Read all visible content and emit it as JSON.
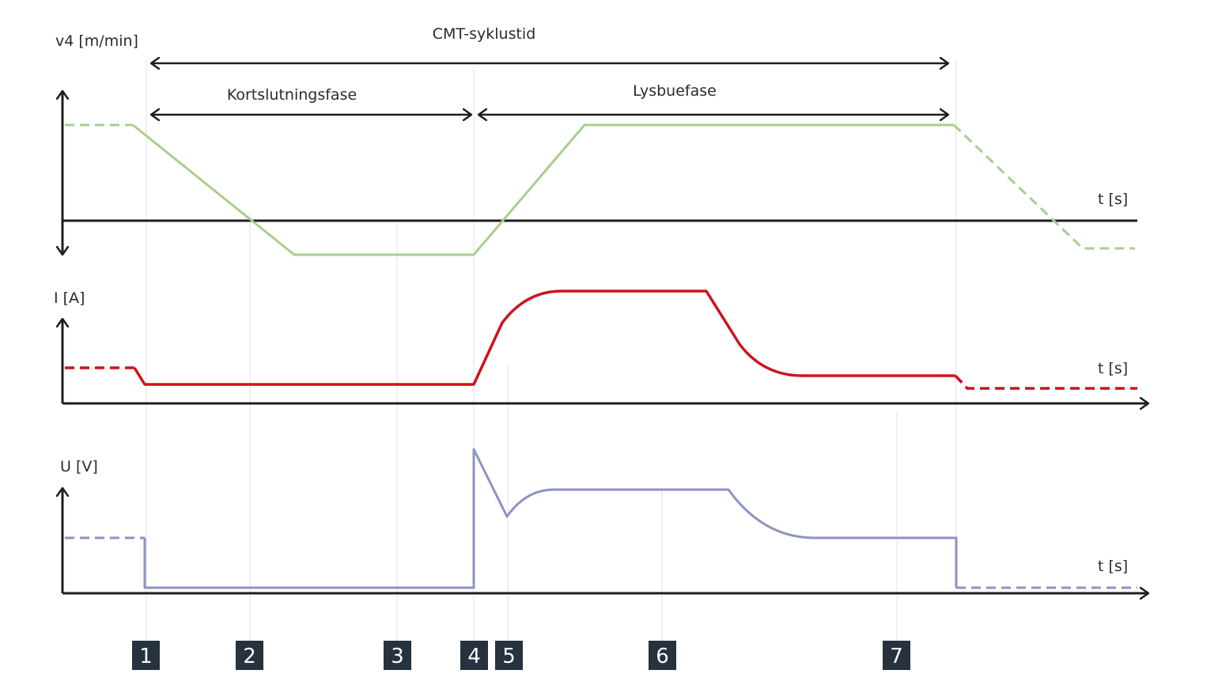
{
  "labels": {
    "cycle_time": "CMT-syklustid",
    "short_circuit_phase": "Kortslutningsfase",
    "arc_phase": "Lysbuefase"
  },
  "axes": {
    "wire_speed": {
      "label": "v4 [m/min]",
      "time_label": "t [s]"
    },
    "current": {
      "label": "I [A]",
      "time_label": "t [s]"
    },
    "voltage": {
      "label": "U [V]",
      "time_label": "t [s]"
    }
  },
  "markers": [
    "1",
    "2",
    "3",
    "4",
    "5",
    "6",
    "7"
  ],
  "colors": {
    "wire_speed": "#a8cf8e",
    "current": "#d0121b",
    "voltage": "#8c93c4",
    "axis": "#1e1e1e",
    "marker_bg": "#26323d",
    "guide": "#e6e6e6"
  }
}
